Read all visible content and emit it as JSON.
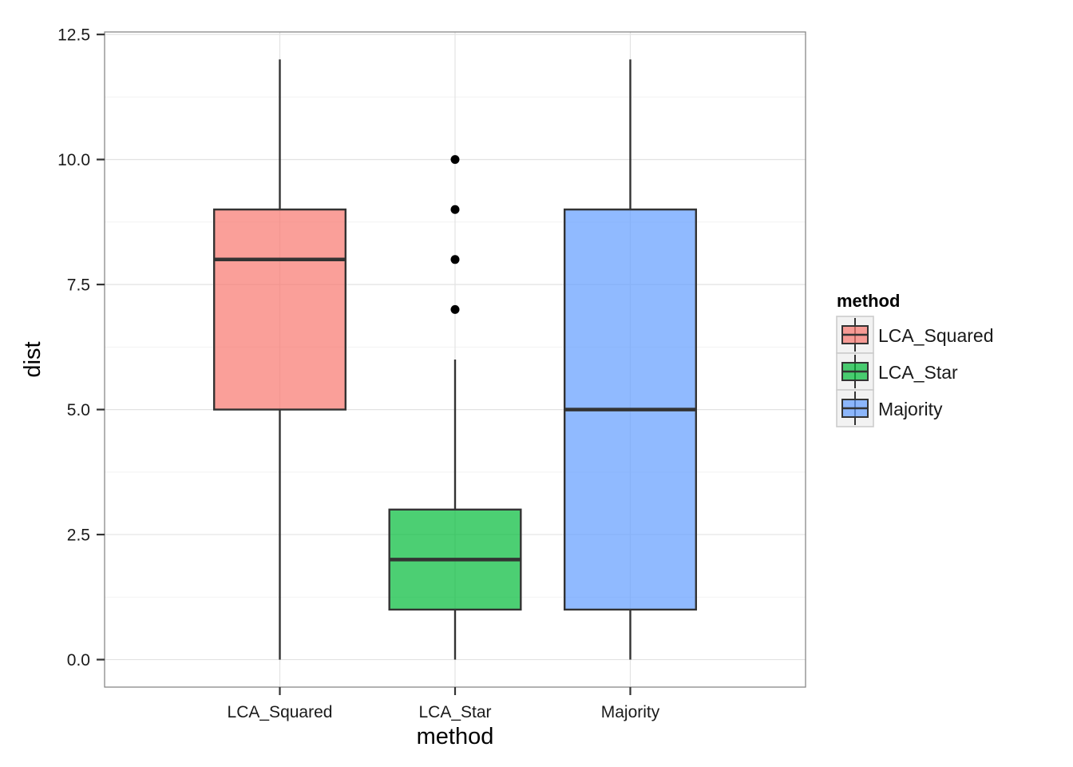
{
  "chart_data": {
    "type": "boxplot",
    "xlabel": "method",
    "ylabel": "dist",
    "categories": [
      "LCA_Squared",
      "LCA_Star",
      "Majority"
    ],
    "ylim": [
      -0.55,
      12.55
    ],
    "yticks": [
      0.0,
      2.5,
      5.0,
      7.5,
      10.0,
      12.5
    ],
    "ytick_labels": [
      "0.0",
      "2.5",
      "5.0",
      "7.5",
      "10.0",
      "12.5"
    ],
    "grid": true,
    "legend": {
      "title": "method",
      "placement": "right",
      "entries": [
        "LCA_Squared",
        "LCA_Star",
        "Majority"
      ]
    },
    "colors": [
      "#F8766D",
      "#00BA38",
      "#619CFF"
    ],
    "boxes": [
      {
        "category": "LCA_Squared",
        "whisker_low": 0,
        "q1": 5,
        "median": 8,
        "q3": 9,
        "whisker_high": 12,
        "outliers": []
      },
      {
        "category": "LCA_Star",
        "whisker_low": 0,
        "q1": 1,
        "median": 2,
        "q3": 3,
        "whisker_high": 6,
        "outliers": [
          7,
          8,
          9,
          10
        ]
      },
      {
        "category": "Majority",
        "whisker_low": 0,
        "q1": 1,
        "median": 5,
        "q3": 9,
        "whisker_high": 12,
        "outliers": []
      }
    ]
  }
}
